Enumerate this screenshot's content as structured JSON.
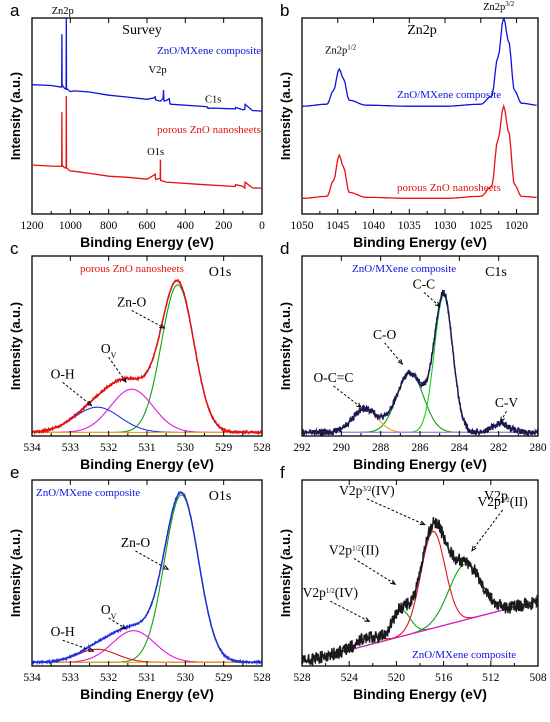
{
  "panels": [
    {
      "id": "a",
      "letter": "a",
      "type": "line",
      "title": "Survey",
      "xlabel": "Binding Energy (eV)",
      "ylabel": "Intensity (a.u.)",
      "xlim": [
        1200,
        0
      ],
      "xreversed": true,
      "xticks": [
        "1200",
        "1000",
        "800",
        "600",
        "400",
        "200",
        "0"
      ],
      "series": [
        {
          "name": "ZnO/MXene composite",
          "color": "#1010e0",
          "label_color": "#1010e0",
          "x": [
            1200,
            1100,
            1045,
            1044,
            1043,
            1030,
            1022,
            1021,
            1020,
            1000,
            980,
            900,
            800,
            700,
            600,
            560,
            558,
            555,
            530,
            516,
            514,
            512,
            500,
            484,
            480,
            470,
            300,
            284,
            282,
            250,
            140,
            138,
            100,
            90,
            88,
            50,
            10,
            0
          ],
          "y": [
            0.66,
            0.655,
            0.65,
            0.92,
            0.66,
            0.64,
            0.64,
            1.0,
            0.64,
            0.625,
            0.63,
            0.62,
            0.605,
            0.6,
            0.585,
            0.595,
            0.6,
            0.585,
            0.575,
            0.59,
            0.635,
            0.58,
            0.575,
            0.585,
            0.565,
            0.56,
            0.545,
            0.548,
            0.54,
            0.54,
            0.535,
            0.545,
            0.535,
            0.53,
            0.56,
            0.53,
            0.525,
            0.525
          ]
        },
        {
          "name": "porous ZnO nanosheets",
          "color": "#e81010",
          "label_color": "#e81010",
          "x": [
            1200,
            1100,
            1045,
            1044,
            1043,
            1030,
            1022,
            1021,
            1020,
            1000,
            980,
            900,
            800,
            700,
            600,
            560,
            558,
            555,
            531,
            530,
            529,
            500,
            300,
            140,
            138,
            100,
            90,
            88,
            50,
            10,
            0
          ],
          "y": [
            0.25,
            0.245,
            0.24,
            0.52,
            0.25,
            0.235,
            0.235,
            0.6,
            0.235,
            0.22,
            0.215,
            0.205,
            0.195,
            0.19,
            0.18,
            0.2,
            0.21,
            0.18,
            0.18,
            0.28,
            0.17,
            0.165,
            0.15,
            0.14,
            0.15,
            0.14,
            0.135,
            0.16,
            0.135,
            0.13,
            0.13
          ]
        }
      ],
      "annotations": [
        {
          "text": "Zn2p",
          "x": 1040,
          "y": 1.02,
          "color": "#000000"
        },
        {
          "text": "V2p",
          "x": 545,
          "y": 0.72,
          "color": "#000000"
        },
        {
          "text": "C1s",
          "x": 255,
          "y": 0.57,
          "color": "#000000"
        },
        {
          "text": "O1s",
          "x": 555,
          "y": 0.3,
          "color": "#000000"
        }
      ]
    },
    {
      "id": "b",
      "letter": "b",
      "type": "line",
      "title": "Zn2p",
      "xlabel": "Binding Energy (eV)",
      "ylabel": "Intensity (a.u.)",
      "xlim": [
        1050,
        1017
      ],
      "xreversed": true,
      "xticks": [
        "1050",
        "1045",
        "1040",
        "1035",
        "1030",
        "1025",
        "1020"
      ],
      "series": [
        {
          "name": "ZnO/MXene composite",
          "color": "#1010e0",
          "label_color": "#1010e0",
          "x": [
            1050,
            1046.5,
            1045.6,
            1044.8,
            1044.2,
            1043.4,
            1041,
            1035,
            1030,
            1025,
            1023.5,
            1022.6,
            1021.8,
            1021.1,
            1020.3,
            1019.3,
            1017
          ],
          "y": [
            0.55,
            0.56,
            0.63,
            0.74,
            0.69,
            0.58,
            0.555,
            0.55,
            0.55,
            0.56,
            0.6,
            0.8,
            1.0,
            0.88,
            0.63,
            0.565,
            0.555
          ]
        },
        {
          "name": "porous ZnO nanosheets",
          "color": "#e81010",
          "label_color": "#e81010",
          "x": [
            1050,
            1046.5,
            1045.6,
            1044.8,
            1044.2,
            1043.4,
            1041,
            1035,
            1030,
            1025,
            1023.5,
            1022.6,
            1021.8,
            1021.1,
            1020.3,
            1019.3,
            1017
          ],
          "y": [
            0.08,
            0.09,
            0.17,
            0.3,
            0.24,
            0.11,
            0.085,
            0.08,
            0.08,
            0.09,
            0.14,
            0.38,
            0.55,
            0.42,
            0.15,
            0.09,
            0.085
          ]
        }
      ],
      "annotations": [
        {
          "text": "Zn2p",
          "sup": "1/2",
          "x": 1044.6,
          "y": 0.82,
          "color": "#000000"
        },
        {
          "text": "Zn2p",
          "sup": "3/2",
          "x": 1022.5,
          "y": 1.04,
          "color": "#000000"
        }
      ]
    },
    {
      "id": "c",
      "letter": "c",
      "type": "line",
      "title": "O1s",
      "xlabel": "Binding Energy (eV)",
      "ylabel": "Intensity (a.u.)",
      "xlim": [
        534,
        528
      ],
      "xreversed": true,
      "xticks": [
        "534",
        "533",
        "532",
        "531",
        "530",
        "529",
        "528"
      ],
      "series": [
        {
          "name": "Zn-O",
          "color": "#12a012",
          "peak_center": 530.2,
          "peak_fwhm": 1.0,
          "peak_height": 0.82
        },
        {
          "name": "O_V",
          "color": "#e018e0",
          "peak_center": 531.4,
          "peak_fwhm": 1.3,
          "peak_height": 0.24
        },
        {
          "name": "O-H",
          "color": "#2030e0",
          "peak_center": 532.3,
          "peak_fwhm": 1.4,
          "peak_height": 0.14
        },
        {
          "name": "envelope",
          "color": "#000000",
          "envelope": true
        },
        {
          "name": "measured",
          "color": "#e81010",
          "envelope": true,
          "noise": 0.006
        },
        {
          "name": "baseline",
          "color": "#f0a020",
          "flat": 0.02
        }
      ],
      "annotations": [
        {
          "text": "Zn-O",
          "x": 531.4,
          "y": 0.72,
          "arrow_to": [
            530.55,
            0.6
          ]
        },
        {
          "text": "O",
          "sub": "V",
          "x": 532.0,
          "y": 0.46,
          "arrow_to": [
            531.55,
            0.3
          ]
        },
        {
          "text": "O-H",
          "x": 533.2,
          "y": 0.32,
          "arrow_to": [
            532.45,
            0.17
          ]
        }
      ],
      "inner_label": "porous ZnO nanosheets",
      "inner_label_color": "#e81010"
    },
    {
      "id": "d",
      "letter": "d",
      "type": "line",
      "title": "C1s",
      "xlabel": "Binding Energy (eV)",
      "ylabel": "Intensity (a.u.)",
      "xlim": [
        292,
        280
      ],
      "xreversed": true,
      "xticks": [
        "292",
        "290",
        "288",
        "286",
        "284",
        "282",
        "280"
      ],
      "series": [
        {
          "name": "C-C",
          "color": "#18d018",
          "peak_center": 284.8,
          "peak_fwhm": 1.1,
          "peak_height": 0.76
        },
        {
          "name": "C-O",
          "color": "#12a012",
          "peak_center": 286.5,
          "peak_fwhm": 1.6,
          "peak_height": 0.33
        },
        {
          "name": "O-C=C",
          "color": "#f0a020",
          "peak_center": 288.8,
          "peak_fwhm": 1.5,
          "peak_height": 0.13
        },
        {
          "name": "C-V",
          "color": "#e018e0",
          "peak_center": 281.9,
          "peak_fwhm": 1.0,
          "peak_height": 0.05
        },
        {
          "name": "envelope",
          "color": "#2040ff",
          "envelope": true
        },
        {
          "name": "measured",
          "color": "#1a1a50",
          "envelope": true,
          "noise": 0.018
        },
        {
          "name": "baseline",
          "color": "#9090f0",
          "flat": 0.02
        }
      ],
      "annotations": [
        {
          "text": "C-C",
          "x": 285.8,
          "y": 0.82,
          "arrow_to": [
            285.0,
            0.72
          ]
        },
        {
          "text": "C-O",
          "x": 287.8,
          "y": 0.54,
          "arrow_to": [
            286.9,
            0.4
          ]
        },
        {
          "text": "O-C=C",
          "x": 290.4,
          "y": 0.3,
          "arrow_to": [
            289.0,
            0.16
          ]
        },
        {
          "text": "C-V",
          "x": 281.6,
          "y": 0.16,
          "arrow_to": [
            281.9,
            0.08
          ]
        }
      ],
      "inner_label": "ZnO/MXene composite",
      "inner_label_color": "#1010e0"
    },
    {
      "id": "e",
      "letter": "e",
      "type": "line",
      "title": "O1s",
      "xlabel": "Binding Energy (eV)",
      "ylabel": "Intensity (a.u.)",
      "xlim": [
        534,
        528
      ],
      "xreversed": true,
      "xticks": [
        "534",
        "533",
        "532",
        "531",
        "530",
        "529",
        "528"
      ],
      "series": [
        {
          "name": "Zn-O",
          "color": "#12a012",
          "peak_center": 530.1,
          "peak_fwhm": 1.05,
          "peak_height": 0.9
        },
        {
          "name": "O_V",
          "color": "#e018e0",
          "peak_center": 531.35,
          "peak_fwhm": 1.3,
          "peak_height": 0.17
        },
        {
          "name": "O-H",
          "color": "#e81010",
          "peak_center": 532.3,
          "peak_fwhm": 1.2,
          "peak_height": 0.07
        },
        {
          "name": "envelope",
          "color": "#000000",
          "envelope": true
        },
        {
          "name": "measured",
          "color": "#2030e0",
          "envelope": true,
          "noise": 0.005
        },
        {
          "name": "baseline",
          "color": "#f0a020",
          "flat": 0.02
        }
      ],
      "annotations": [
        {
          "text": "Zn-O",
          "x": 531.3,
          "y": 0.64,
          "arrow_to": [
            530.45,
            0.52
          ]
        },
        {
          "text": "O",
          "sub": "V",
          "x": 532.0,
          "y": 0.28,
          "arrow_to": [
            531.55,
            0.2
          ]
        },
        {
          "text": "O-H",
          "x": 533.2,
          "y": 0.16,
          "arrow_to": [
            532.4,
            0.08
          ]
        }
      ],
      "inner_label": "ZnO/MXene composite",
      "inner_label_color": "#1010e0"
    },
    {
      "id": "f",
      "letter": "f",
      "type": "line",
      "title": "V2p",
      "xlabel": "Binding Energy (eV)",
      "ylabel": "Intensity (a.u.)",
      "xlim": [
        528,
        508
      ],
      "xreversed": true,
      "xticks": [
        "528",
        "524",
        "520",
        "516",
        "512",
        "508"
      ],
      "series": [
        {
          "name": "V2p3/2(IV)",
          "color": "#e81010",
          "peak_center": 516.9,
          "peak_fwhm": 2.4,
          "peak_height": 0.52
        },
        {
          "name": "V2p3/2(II)",
          "color": "#12a012",
          "peak_center": 514.2,
          "peak_fwhm": 3.2,
          "peak_height": 0.3
        },
        {
          "name": "V2p1/2(II)",
          "color": "#12a012",
          "peak_center": 519.6,
          "peak_fwhm": 1.8,
          "peak_height": 0.14
        },
        {
          "name": "V2p1/2(IV)",
          "color": "#e81010",
          "peak_center": 522.5,
          "peak_fwhm": 2.2,
          "peak_height": 0.04
        },
        {
          "name": "envelope",
          "color": "#2030e0",
          "envelope": true
        },
        {
          "name": "measured",
          "color": "#1a1a1a",
          "envelope": true,
          "noise": 0.035
        },
        {
          "name": "baseline",
          "color": "#e018e0",
          "linear": [
            528,
            0.02,
            508,
            0.35
          ]
        }
      ],
      "annotations": [
        {
          "text": "V2p",
          "sup": "3/2",
          "tail": "(IV)",
          "x": 522.5,
          "y": 0.92,
          "arrow_to": [
            517.6,
            0.76
          ]
        },
        {
          "text": "V2p",
          "sup": "3/2",
          "tail": "(II)",
          "x": 511.0,
          "y": 0.86,
          "arrow_to": [
            513.6,
            0.62
          ]
        },
        {
          "text": "V2p",
          "sup": "1/2",
          "tail": "(II)",
          "x": 523.6,
          "y": 0.6,
          "arrow_to": [
            520.1,
            0.44
          ]
        },
        {
          "text": "V2p",
          "sup": "1/2",
          "tail": "(IV)",
          "x": 525.6,
          "y": 0.37,
          "arrow_to": [
            522.3,
            0.24
          ]
        }
      ],
      "inner_label": "ZnO/MXene composite",
      "inner_label_color": "#1010e0"
    }
  ],
  "chart_data": [
    {
      "panel": "a",
      "type": "line",
      "title": "Survey",
      "xlabel": "Binding Energy (eV)",
      "ylabel": "Intensity (a.u.)",
      "xlim": [
        1200,
        0
      ],
      "series": [
        {
          "name": "ZnO/MXene composite"
        },
        {
          "name": "porous ZnO nanosheets"
        }
      ],
      "annotations": [
        "Zn2p",
        "V2p",
        "C1s",
        "O1s"
      ]
    },
    {
      "panel": "b",
      "type": "line",
      "title": "Zn2p",
      "xlabel": "Binding Energy (eV)",
      "ylabel": "Intensity (a.u.)",
      "xlim": [
        1050,
        1017
      ],
      "series": [
        {
          "name": "ZnO/MXene composite"
        },
        {
          "name": "porous ZnO nanosheets"
        }
      ],
      "peaks": {
        "Zn2p1/2": 1044.8,
        "Zn2p3/2": 1021.8
      }
    },
    {
      "panel": "c",
      "type": "line",
      "title": "O1s",
      "xlabel": "Binding Energy (eV)",
      "ylabel": "Intensity (a.u.)",
      "xlim": [
        534,
        528
      ],
      "peaks": {
        "Zn-O": 530.2,
        "O_V": 531.4,
        "O-H": 532.3
      }
    },
    {
      "panel": "d",
      "type": "line",
      "title": "C1s",
      "xlabel": "Binding Energy (eV)",
      "ylabel": "Intensity (a.u.)",
      "xlim": [
        292,
        280
      ],
      "peaks": {
        "C-C": 284.8,
        "C-O": 286.5,
        "O-C=C": 288.8,
        "C-V": 281.9
      }
    },
    {
      "panel": "e",
      "type": "line",
      "title": "O1s",
      "xlabel": "Binding Energy (eV)",
      "ylabel": "Intensity (a.u.)",
      "xlim": [
        534,
        528
      ],
      "peaks": {
        "Zn-O": 530.1,
        "O_V": 531.35,
        "O-H": 532.3
      }
    },
    {
      "panel": "f",
      "type": "line",
      "title": "V2p",
      "xlabel": "Binding Energy (eV)",
      "ylabel": "Intensity (a.u.)",
      "xlim": [
        528,
        508
      ],
      "peaks": {
        "V2p3/2(IV)": 516.9,
        "V2p3/2(II)": 514.2,
        "V2p1/2(II)": 519.6,
        "V2p1/2(IV)": 522.5
      }
    }
  ]
}
